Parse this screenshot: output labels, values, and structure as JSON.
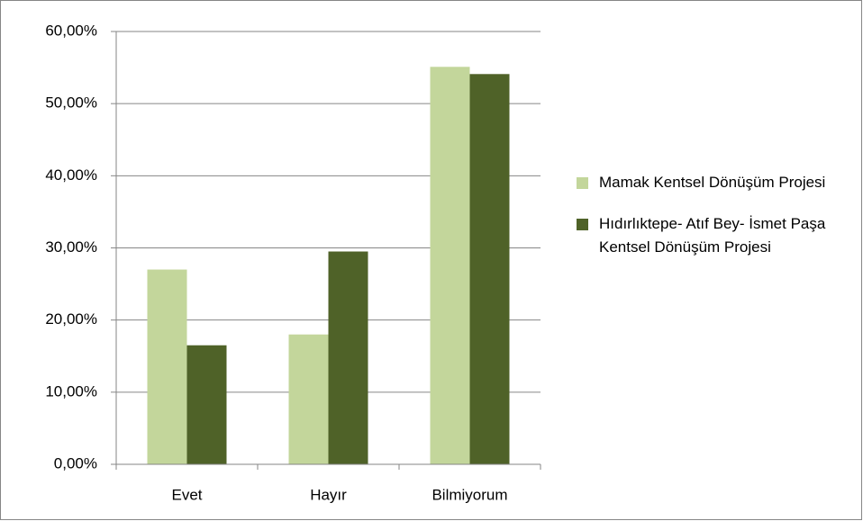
{
  "chart_data": {
    "type": "bar",
    "categories": [
      "Evet",
      "Hayır",
      "Bilmiyorum"
    ],
    "series": [
      {
        "name": "Mamak Kentsel Dönüşüm Projesi",
        "color": "#c3d69b",
        "values": [
          27,
          18,
          55.1
        ]
      },
      {
        "name": "Hıdırlıktepe- Atıf Bey- İsmet Paşa Kentsel Dönüşüm Projesi",
        "color": "#4f6228",
        "values": [
          16.5,
          29.5,
          54.1
        ]
      }
    ],
    "ylim": [
      0,
      60
    ],
    "yticks": [
      {
        "value": 0,
        "label": "0,00%"
      },
      {
        "value": 10,
        "label": "10,00%"
      },
      {
        "value": 20,
        "label": "20,00%"
      },
      {
        "value": 30,
        "label": "30,00%"
      },
      {
        "value": 40,
        "label": "40,00%"
      },
      {
        "value": 50,
        "label": "50,00%"
      },
      {
        "value": 60,
        "label": "60,00%"
      }
    ],
    "grid": true,
    "legend": "right"
  }
}
